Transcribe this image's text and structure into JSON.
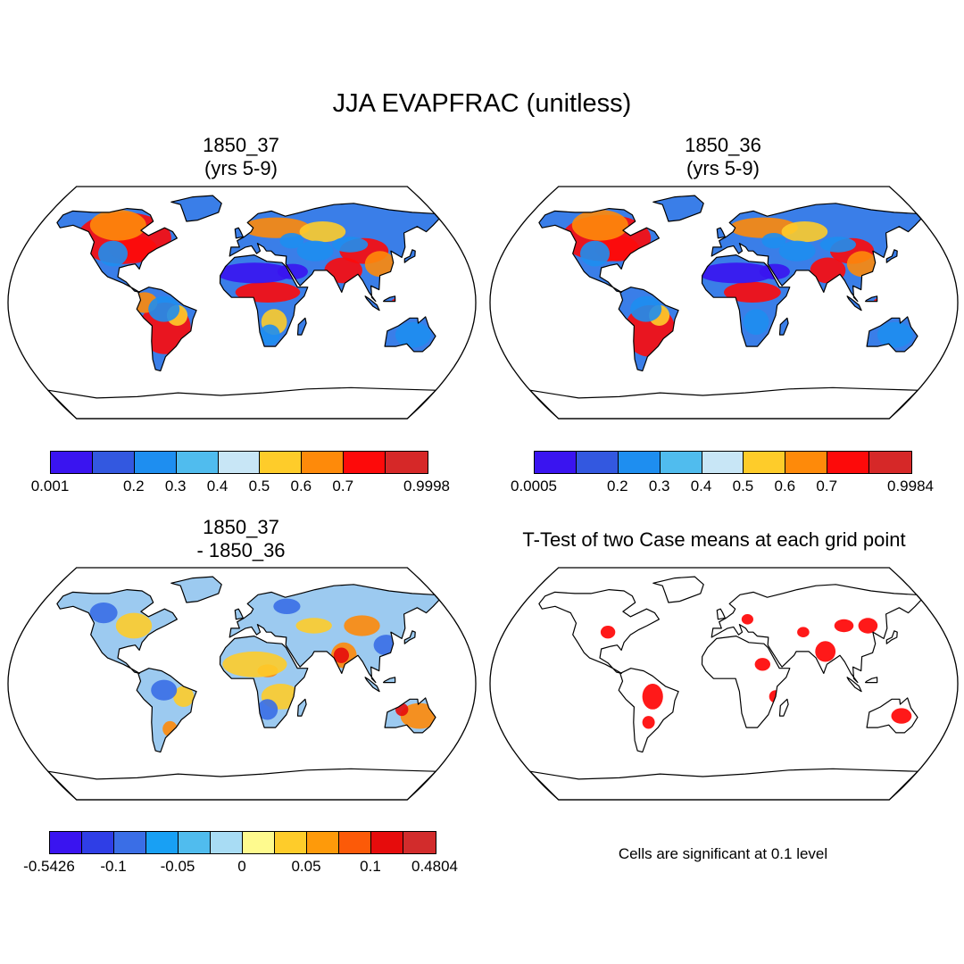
{
  "title": "JJA EVAPFRAC (unitless)",
  "panels": [
    {
      "id": "p1",
      "title_line1": "1850_37",
      "title_line2": "(yrs 5-9)",
      "field": "case1"
    },
    {
      "id": "p2",
      "title_line1": "1850_36",
      "title_line2": "(yrs 5-9)",
      "field": "case2"
    },
    {
      "id": "p3",
      "title_line1": "1850_37",
      "title_line2": "- 1850_36",
      "field": "difference"
    },
    {
      "id": "p4",
      "title_line1": "T-Test of two Case means at each grid point",
      "title_line2": "",
      "field": "significance"
    }
  ],
  "colorbars": {
    "case1": {
      "colors": [
        "#3a14f0",
        "#3358e0",
        "#1e8ef0",
        "#50bcee",
        "#c8e6f6",
        "#fecc2a",
        "#fe8a0a",
        "#fd0a0a",
        "#d62828"
      ],
      "labels": [
        "0.001",
        "0.2",
        "0.3",
        "0.4",
        "0.5",
        "0.6",
        "0.7",
        "0.9998"
      ],
      "label_positions": [
        0,
        2,
        3,
        4,
        5,
        6,
        7,
        9
      ]
    },
    "case2": {
      "colors": [
        "#3a14f0",
        "#3358e0",
        "#1e8ef0",
        "#50bcee",
        "#c8e6f6",
        "#fecc2a",
        "#fe8a0a",
        "#fd0a0a",
        "#d62828"
      ],
      "labels": [
        "0.0005",
        "0.2",
        "0.3",
        "0.4",
        "0.5",
        "0.6",
        "0.7",
        "0.9984"
      ],
      "label_positions": [
        0,
        2,
        3,
        4,
        5,
        6,
        7,
        9
      ]
    },
    "difference": {
      "colors": [
        "#3a14f0",
        "#2f3ee6",
        "#3a6ee6",
        "#18a0f4",
        "#50bcee",
        "#a8dcf4",
        "#fefa8e",
        "#fecc2a",
        "#fe9a0a",
        "#fc5a08",
        "#e60c0c",
        "#d22c2c"
      ],
      "labels": [
        "-0.5426",
        "-0.1",
        "-0.05",
        "0",
        "0.05",
        "0.1",
        "0.4804"
      ],
      "label_positions": [
        0,
        2,
        4,
        6,
        8,
        10,
        12
      ]
    }
  },
  "significance_note": "Cells are significant at 0.1 level",
  "significance_color": "#ff0000"
}
